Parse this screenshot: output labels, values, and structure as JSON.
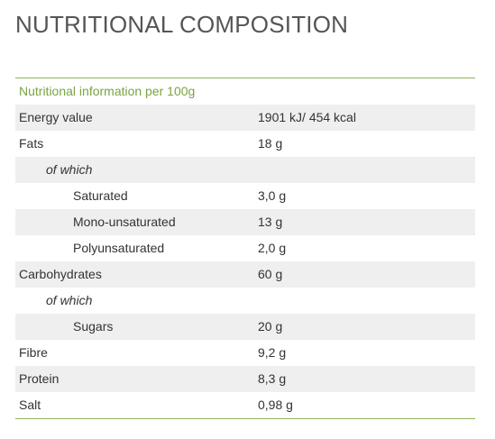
{
  "page_title": "NUTRITIONAL COMPOSITION",
  "table": {
    "header": "Nutritional information per 100g",
    "rows": [
      {
        "label": "Energy value",
        "value": "1901 kJ/ 454 kcal",
        "level": 0
      },
      {
        "label": "Fats",
        "value": "18 g",
        "level": 0
      },
      {
        "label": "of which",
        "value": "",
        "level": 1
      },
      {
        "label": "Saturated",
        "value": "3,0 g",
        "level": 2
      },
      {
        "label": "Mono-unsaturated",
        "value": "13 g",
        "level": 2
      },
      {
        "label": "Polyunsaturated",
        "value": "2,0 g",
        "level": 2
      },
      {
        "label": "Carbohydrates",
        "value": "60 g",
        "level": 0
      },
      {
        "label": "of which",
        "value": "",
        "level": 1
      },
      {
        "label": "Sugars",
        "value": "20 g",
        "level": 2
      },
      {
        "label": "Fibre",
        "value": "9,2 g",
        "level": 0
      },
      {
        "label": "Protein",
        "value": "8,3 g",
        "level": 0
      },
      {
        "label": "Salt",
        "value": "0,98 g",
        "level": 0
      }
    ]
  },
  "colors": {
    "accent": "#7aa443",
    "rule": "#8fb45a",
    "row_shade": "#efefef"
  }
}
